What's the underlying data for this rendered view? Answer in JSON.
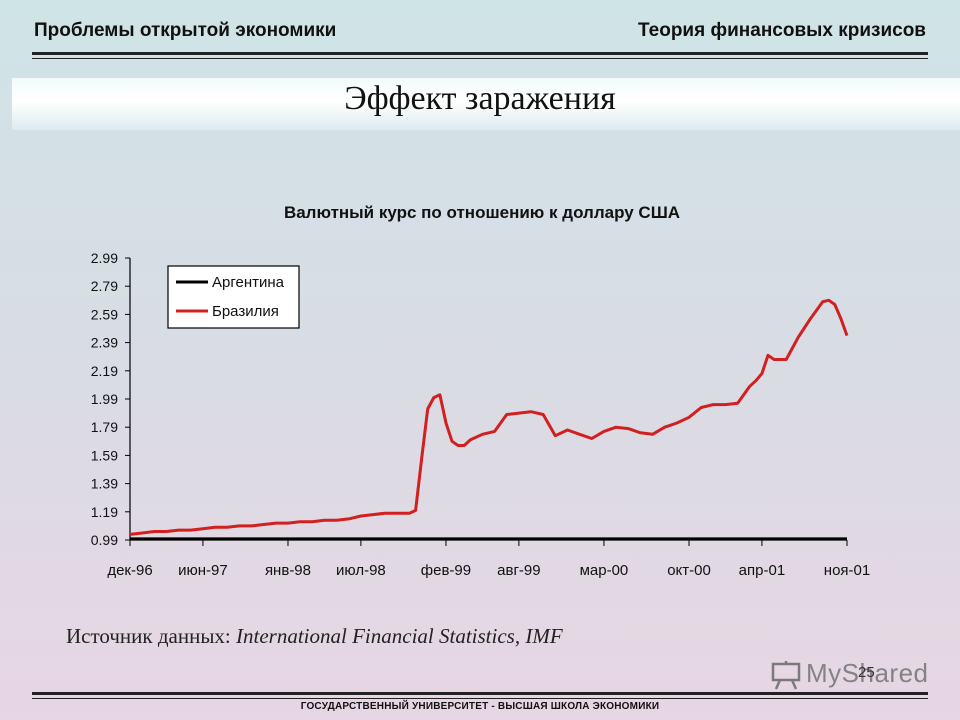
{
  "header": {
    "left": "Проблемы открытой экономики",
    "right": "Теория финансовых кризисов"
  },
  "page_title": "Эффект заражения",
  "source": {
    "label": "Источник данных:",
    "value": "International Financial Statistics, IMF"
  },
  "footer": "ГОСУДАРСТВЕННЫЙ УНИВЕРСИТЕТ - ВЫСШАЯ ШКОЛА ЭКОНОМИКИ",
  "page_number": "25",
  "watermark": {
    "text": "MyShared",
    "icon": "presentation-board-icon"
  },
  "chart_data": {
    "type": "line",
    "title": "Валютный курс по отношению к доллару США",
    "xlabel": "",
    "ylabel": "",
    "y_ticks": [
      "2.99",
      "2.79",
      "2.59",
      "2.39",
      "2.19",
      "1.99",
      "1.79",
      "1.59",
      "1.39",
      "1.19",
      "0.99"
    ],
    "ylim": [
      0.99,
      2.99
    ],
    "x_ticks": [
      "дек-96",
      "июн-97",
      "янв-98",
      "июл-98",
      "фев-99",
      "авг-99",
      "мар-00",
      "окт-00",
      "апр-01",
      "ноя-01"
    ],
    "x_tick_positions": [
      0,
      6,
      13,
      19,
      26,
      32,
      39,
      46,
      52,
      59
    ],
    "xlim": [
      0,
      59
    ],
    "legend_position": "top-left",
    "grid": false,
    "series": [
      {
        "name": "Аргентина",
        "color": "#000000",
        "x": [
          0,
          59
        ],
        "values": [
          1.0,
          1.0
        ]
      },
      {
        "name": "Бразилия",
        "color": "#d21f1f",
        "x": [
          0,
          1,
          2,
          3,
          4,
          5,
          6,
          7,
          8,
          9,
          10,
          11,
          12,
          13,
          14,
          15,
          16,
          17,
          18,
          19,
          20,
          21,
          22,
          23,
          23.5,
          24,
          24.5,
          25,
          25.5,
          26,
          26.5,
          27,
          27.5,
          28,
          29,
          30,
          31,
          32,
          33,
          34,
          35,
          36,
          37,
          38,
          39,
          40,
          41,
          42,
          43,
          44,
          45,
          46,
          47,
          48,
          49,
          50,
          51,
          51.5,
          52,
          52.5,
          53,
          54,
          55,
          56,
          57,
          57.5,
          58,
          58.5,
          59
        ],
        "values": [
          1.03,
          1.04,
          1.05,
          1.05,
          1.06,
          1.06,
          1.07,
          1.08,
          1.08,
          1.09,
          1.09,
          1.1,
          1.11,
          1.11,
          1.12,
          1.12,
          1.13,
          1.13,
          1.14,
          1.16,
          1.17,
          1.18,
          1.18,
          1.18,
          1.2,
          1.57,
          1.92,
          2.0,
          2.02,
          1.82,
          1.69,
          1.66,
          1.66,
          1.7,
          1.74,
          1.76,
          1.88,
          1.89,
          1.9,
          1.88,
          1.73,
          1.77,
          1.74,
          1.71,
          1.76,
          1.79,
          1.78,
          1.75,
          1.74,
          1.79,
          1.82,
          1.86,
          1.93,
          1.95,
          1.95,
          1.96,
          2.08,
          2.12,
          2.17,
          2.3,
          2.27,
          2.27,
          2.43,
          2.56,
          2.68,
          2.69,
          2.66,
          2.56,
          2.44
        ]
      }
    ]
  }
}
